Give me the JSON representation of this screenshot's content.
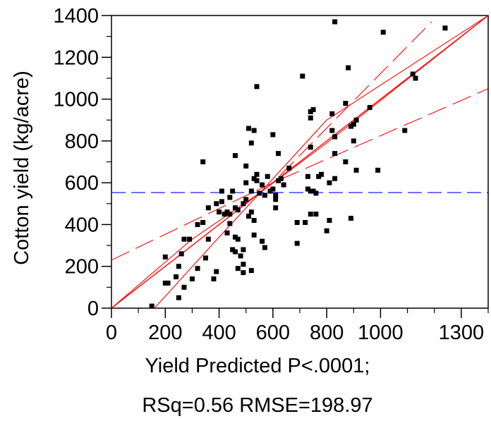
{
  "chart_data": {
    "type": "scatter",
    "title": "",
    "xlabel_line1": "Yield Predicted P<.0001;",
    "xlabel_line2": "RSq=0.56 RMSE=198.97",
    "ylabel": "Cotton yield (kg/acre)",
    "xlim": [
      0,
      1400
    ],
    "ylim": [
      0,
      1400
    ],
    "x_ticks": [
      0,
      200,
      400,
      600,
      800,
      1000,
      1300
    ],
    "x_minor_ticks": [
      100,
      300,
      500,
      700,
      900,
      1100,
      1200,
      1400
    ],
    "y_ticks": [
      0,
      200,
      400,
      600,
      800,
      1000,
      1200,
      1400
    ],
    "y_minor_ticks": [
      100,
      300,
      500,
      700,
      900,
      1100,
      1300
    ],
    "mean_line_y": 553,
    "grid": false,
    "legend": "none",
    "colors": {
      "points": "#000000",
      "fit": "#ff0000",
      "mean": "#0000ff"
    },
    "fit_line": [
      [
        0,
        0
      ],
      [
        1400,
        1400
      ]
    ],
    "inner_band": {
      "lower": [
        [
          0,
          -150
        ],
        [
          553,
          553
        ],
        [
          1400,
          1400
        ]
      ],
      "upper": [
        [
          0,
          150
        ],
        [
          553,
          553
        ],
        [
          1400,
          1400
        ]
      ]
    },
    "inner_band_curves": [
      [
        [
          160,
          0
        ],
        [
          400,
          340
        ],
        [
          553,
          553
        ],
        [
          800,
          900
        ],
        [
          1400,
          1400
        ]
      ],
      [
        [
          0,
          0
        ],
        [
          300,
          330
        ],
        [
          553,
          553
        ],
        [
          800,
          790
        ],
        [
          1400,
          1400
        ]
      ]
    ],
    "outer_band": {
      "upper": [
        [
          0,
          0
        ],
        [
          600,
          600
        ],
        [
          1190,
          1370
        ]
      ],
      "lower": [
        [
          0,
          230
        ],
        [
          600,
          600
        ],
        [
          1400,
          1050
        ]
      ]
    },
    "points": [
      [
        150,
        10
      ],
      [
        250,
        50
      ],
      [
        270,
        100
      ],
      [
        200,
        120
      ],
      [
        210,
        120
      ],
      [
        240,
        150
      ],
      [
        200,
        245
      ],
      [
        250,
        200
      ],
      [
        260,
        260
      ],
      [
        270,
        330
      ],
      [
        290,
        330
      ],
      [
        300,
        140
      ],
      [
        320,
        190
      ],
      [
        320,
        400
      ],
      [
        340,
        410
      ],
      [
        350,
        240
      ],
      [
        340,
        700
      ],
      [
        360,
        330
      ],
      [
        360,
        480
      ],
      [
        380,
        140
      ],
      [
        390,
        175
      ],
      [
        390,
        500
      ],
      [
        400,
        460
      ],
      [
        410,
        560
      ],
      [
        410,
        510
      ],
      [
        420,
        450
      ],
      [
        430,
        460
      ],
      [
        430,
        360
      ],
      [
        440,
        405
      ],
      [
        440,
        530
      ],
      [
        440,
        450
      ],
      [
        450,
        280
      ],
      [
        450,
        560
      ],
      [
        460,
        270
      ],
      [
        460,
        480
      ],
      [
        460,
        730
      ],
      [
        460,
        340
      ],
      [
        470,
        190
      ],
      [
        470,
        470
      ],
      [
        470,
        330
      ],
      [
        480,
        250
      ],
      [
        490,
        210
      ],
      [
        490,
        170
      ],
      [
        490,
        280
      ],
      [
        490,
        500
      ],
      [
        500,
        520
      ],
      [
        500,
        600
      ],
      [
        500,
        680
      ],
      [
        510,
        860
      ],
      [
        510,
        440
      ],
      [
        520,
        180
      ],
      [
        520,
        460
      ],
      [
        520,
        560
      ],
      [
        520,
        790
      ],
      [
        530,
        420
      ],
      [
        530,
        350
      ],
      [
        530,
        850
      ],
      [
        530,
        620
      ],
      [
        540,
        640
      ],
      [
        540,
        610
      ],
      [
        540,
        1060
      ],
      [
        550,
        550
      ],
      [
        560,
        320
      ],
      [
        560,
        590
      ],
      [
        570,
        290
      ],
      [
        570,
        540
      ],
      [
        580,
        630
      ],
      [
        590,
        560
      ],
      [
        600,
        570
      ],
      [
        600,
        830
      ],
      [
        610,
        480
      ],
      [
        610,
        540
      ],
      [
        610,
        520
      ],
      [
        620,
        610
      ],
      [
        620,
        740
      ],
      [
        630,
        620
      ],
      [
        640,
        590
      ],
      [
        660,
        670
      ],
      [
        690,
        410
      ],
      [
        690,
        310
      ],
      [
        710,
        1110
      ],
      [
        720,
        410
      ],
      [
        730,
        570
      ],
      [
        730,
        630
      ],
      [
        740,
        450
      ],
      [
        740,
        560
      ],
      [
        740,
        910
      ],
      [
        740,
        770
      ],
      [
        740,
        940
      ],
      [
        750,
        950
      ],
      [
        750,
        560
      ],
      [
        760,
        450
      ],
      [
        760,
        550
      ],
      [
        770,
        630
      ],
      [
        780,
        640
      ],
      [
        800,
        370
      ],
      [
        810,
        600
      ],
      [
        810,
        420
      ],
      [
        820,
        850
      ],
      [
        820,
        930
      ],
      [
        830,
        620
      ],
      [
        830,
        740
      ],
      [
        830,
        820
      ],
      [
        830,
        1370
      ],
      [
        870,
        700
      ],
      [
        870,
        980
      ],
      [
        880,
        1150
      ],
      [
        890,
        430
      ],
      [
        890,
        870
      ],
      [
        900,
        800
      ],
      [
        900,
        880
      ],
      [
        910,
        900
      ],
      [
        910,
        660
      ],
      [
        960,
        960
      ],
      [
        990,
        660
      ],
      [
        1010,
        1320
      ],
      [
        1090,
        850
      ],
      [
        1120,
        1120
      ],
      [
        1130,
        1100
      ],
      [
        1240,
        1340
      ]
    ]
  }
}
